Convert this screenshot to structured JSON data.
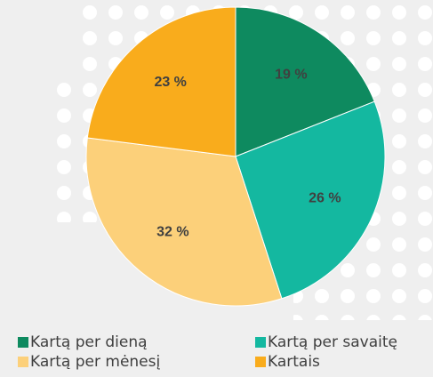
{
  "chart_data": {
    "type": "pie",
    "categories": [
      "Kartą per dieną",
      "Kartą per savaitę",
      "Kartą per mėnesį",
      "Kartais"
    ],
    "values": [
      19,
      26,
      32,
      23
    ],
    "value_labels": [
      "19 %",
      "26 %",
      "32 %",
      "23 %"
    ],
    "colors": [
      "#0e8a5f",
      "#14b8a0",
      "#fcd07a",
      "#f9ac1c"
    ]
  }
}
